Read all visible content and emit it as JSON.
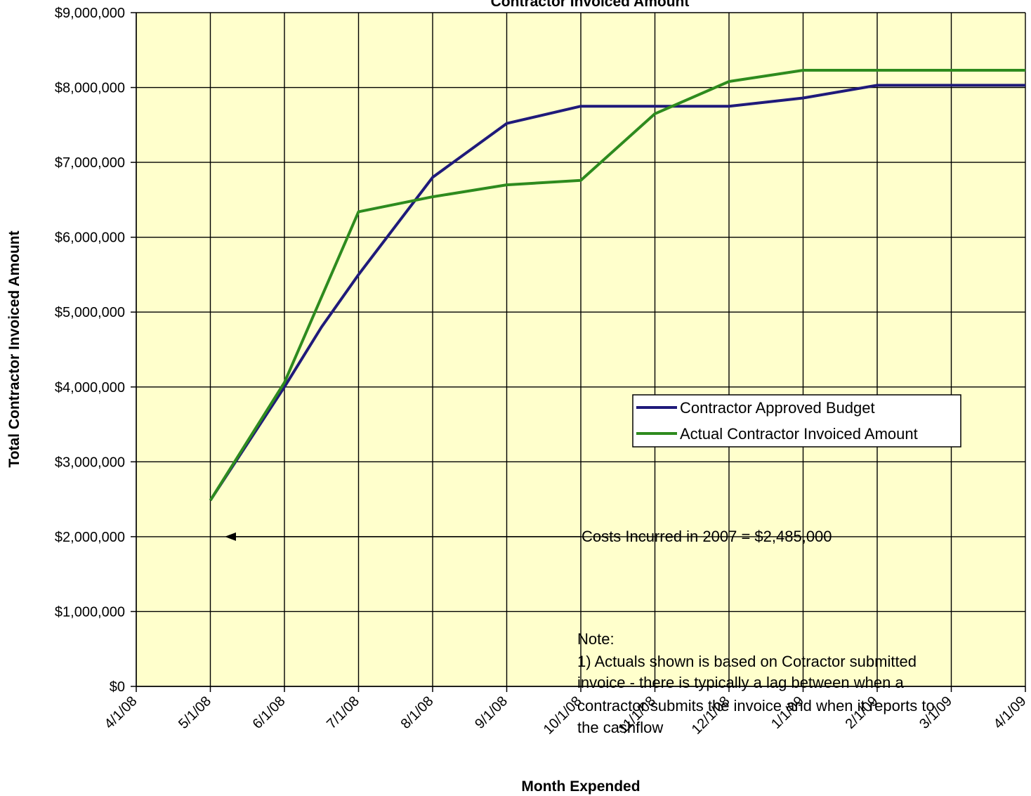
{
  "chart_data": {
    "type": "line",
    "title": "Contractor Invoiced Amount",
    "xlabel": "Month Expended",
    "ylabel": "Total Contractor Invoiced Amount",
    "categories": [
      "4/1/08",
      "5/1/08",
      "6/1/08",
      "7/1/08",
      "8/1/08",
      "9/1/08",
      "10/1/08",
      "11/1/08",
      "12/1/08",
      "1/1/09",
      "2/1/09",
      "3/1/09",
      "4/1/09"
    ],
    "ylim": [
      0,
      9000000
    ],
    "yticks": [
      0,
      1000000,
      2000000,
      3000000,
      4000000,
      5000000,
      6000000,
      7000000,
      8000000,
      9000000
    ],
    "ytick_labels": [
      "$0",
      "$1,000,000",
      "$2,000,000",
      "$3,000,000",
      "$4,000,000",
      "$5,000,000",
      "$6,000,000",
      "$7,000,000",
      "$8,000,000",
      "$9,000,000"
    ],
    "grid": true,
    "background": "#ffffcc",
    "legend_position": "center-right",
    "series": [
      {
        "name": "Contractor Approved Budget",
        "color": "#1f1a7a",
        "x": [
          "5/1/08",
          "6/1/08",
          "6/15/08",
          "7/1/08",
          "8/1/08",
          "9/1/08",
          "10/1/08",
          "11/1/08",
          "12/1/08",
          "1/1/09",
          "2/1/09",
          "3/1/09",
          "4/1/09"
        ],
        "xpos": [
          1,
          2,
          2.5,
          3,
          4,
          5,
          6,
          7,
          8,
          9,
          10,
          11,
          12
        ],
        "values": [
          2485000,
          4000000,
          4800000,
          5500000,
          6800000,
          7520000,
          7750000,
          7750000,
          7750000,
          7860000,
          8030000,
          8030000,
          8030000
        ]
      },
      {
        "name": "Actual Contractor Invoiced Amount",
        "color": "#2e8b1e",
        "x": [
          "5/1/08",
          "6/1/08",
          "7/1/08",
          "8/1/08",
          "9/1/08",
          "10/1/08",
          "11/1/08",
          "12/1/08",
          "1/1/09",
          "2/1/09",
          "3/1/09",
          "4/1/09"
        ],
        "xpos": [
          1,
          2,
          3,
          4,
          5,
          6,
          7,
          8,
          9,
          10,
          11,
          12
        ],
        "values": [
          2485000,
          4060000,
          6340000,
          6540000,
          6700000,
          6760000,
          7650000,
          8080000,
          8230000,
          8230000,
          8230000,
          8230000
        ]
      }
    ],
    "annotation": {
      "text": "Costs Incurred in 2007 = $2,485,000",
      "value": 2485000,
      "y": 2000000
    },
    "note": {
      "lines": [
        "Note:",
        "1) Actuals shown is based on Cotractor submitted",
        "invoice - there is typically a lag between when a",
        "contractor submits the invoice and when it reports to",
        "the cashflow"
      ]
    }
  }
}
